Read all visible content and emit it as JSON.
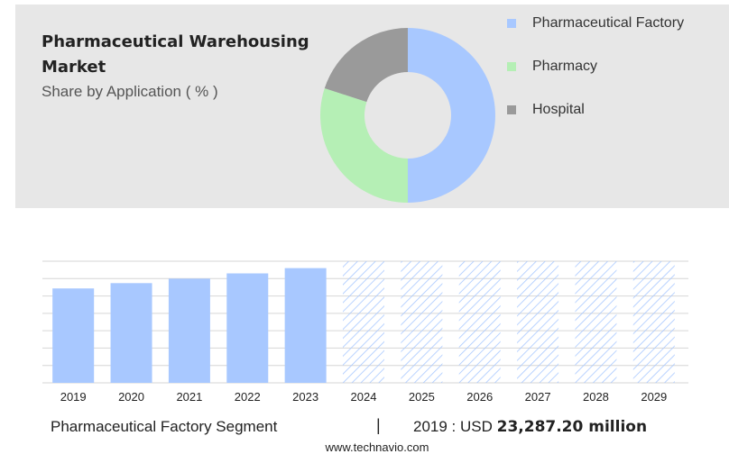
{
  "header": {
    "title": "Pharmaceutical Warehousing Market",
    "subtitle": "Share by Application ( % )"
  },
  "colors": {
    "pharmaceutical_factory": "#a8c8ff",
    "pharmacy": "#b5efb5",
    "hospital": "#9a9a9a",
    "hatch": "#a8c8ff",
    "panel": "#e7e7e7"
  },
  "chart_data": [
    {
      "type": "pie",
      "donut": true,
      "categories": [
        "Pharmaceutical Factory",
        "Pharmacy",
        "Hospital"
      ],
      "values": [
        50,
        30,
        20
      ],
      "legend": [
        "Pharmaceutical Factory",
        "Pharmacy",
        "Hospital"
      ],
      "legend_position": "right"
    },
    {
      "type": "bar",
      "categories": [
        "2019",
        "2020",
        "2021",
        "2022",
        "2023",
        "2024",
        "2025",
        "2026",
        "2027",
        "2028",
        "2029"
      ],
      "values": [
        23287.2,
        24600,
        25700,
        27000,
        28300,
        30000,
        30000,
        30000,
        30000,
        30000,
        30000
      ],
      "forecast_from": "2024",
      "ylim": [
        0,
        30000
      ],
      "grid": true
    }
  ],
  "footer": {
    "segment": "Pharmaceutical Factory Segment",
    "separator": "|",
    "year_label": "2019 : USD",
    "value": "23,287.20 million",
    "url": "www.technavio.com"
  }
}
